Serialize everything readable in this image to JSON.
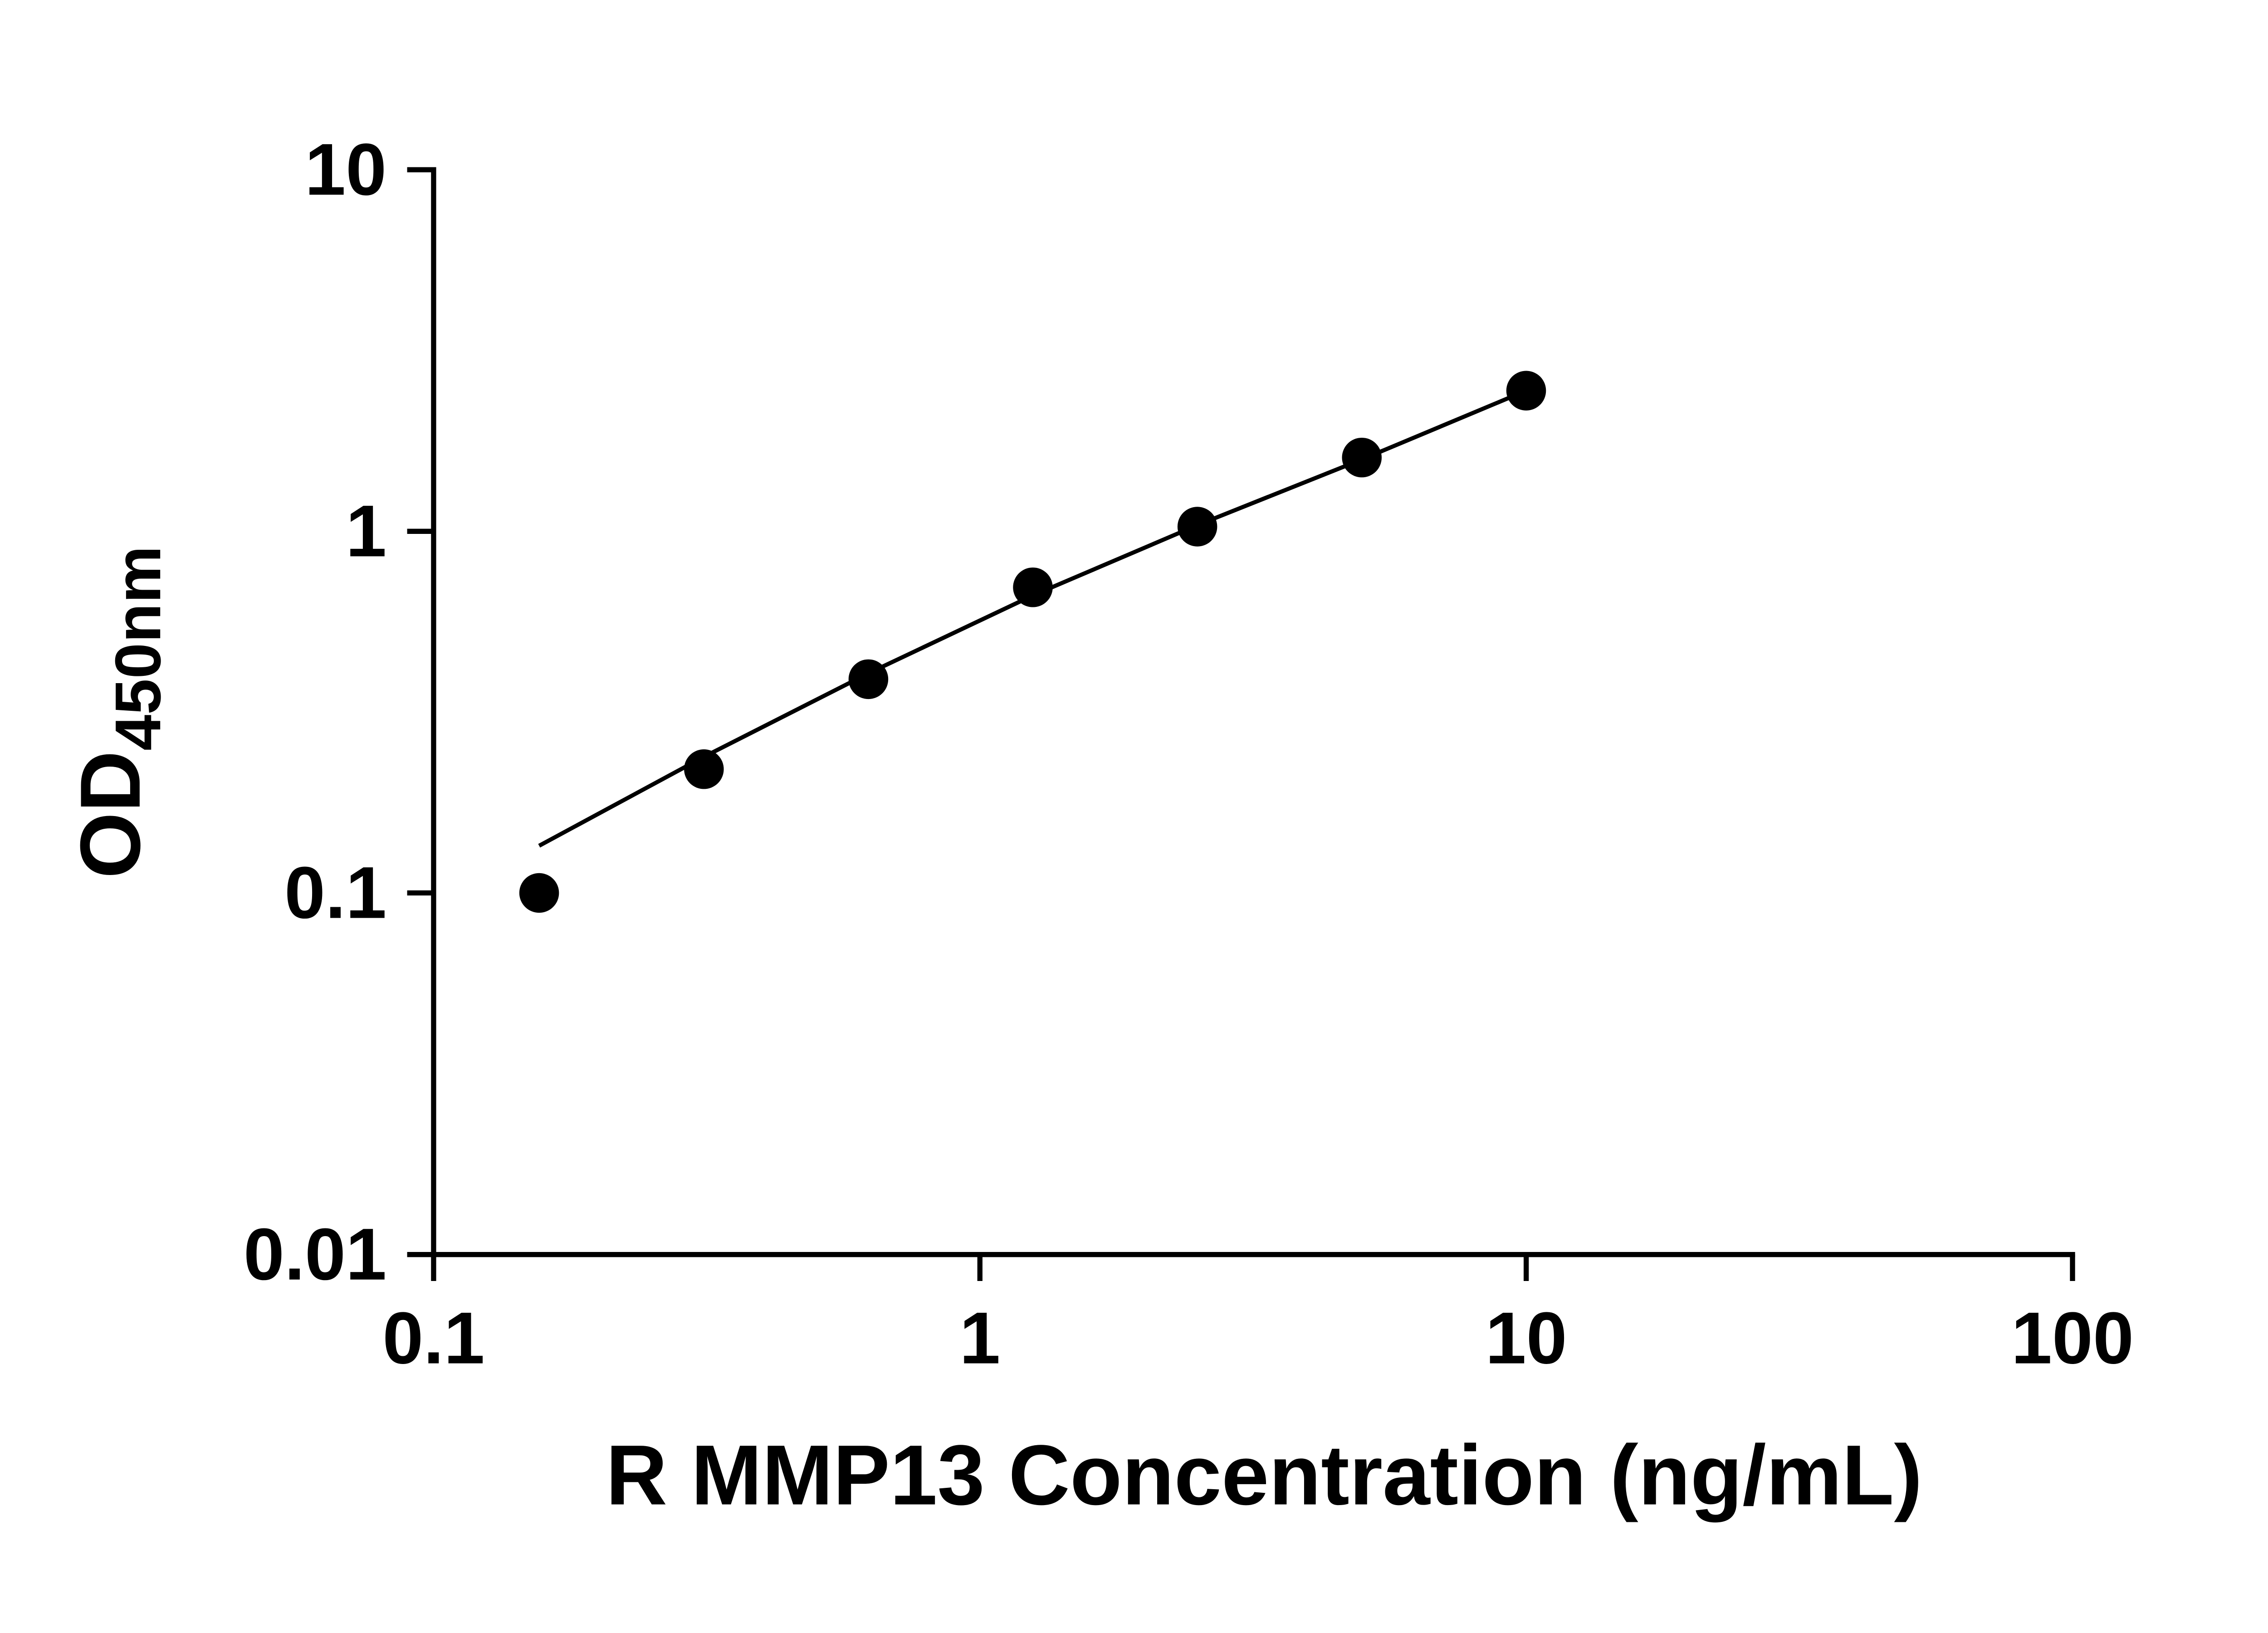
{
  "page": {
    "background": "#ffffff"
  },
  "chart_data": {
    "type": "scatter",
    "title": "",
    "xlabel": "R MMP13 Concentration (ng/mL)",
    "ylabel_main": "OD",
    "ylabel_sub": "450nm",
    "x_scale": "log",
    "y_scale": "log",
    "xlim": [
      0.1,
      100
    ],
    "ylim": [
      0.01,
      10
    ],
    "grid": false,
    "legend": null,
    "axis_color": "#000000",
    "point_color": "#000000",
    "line_color": "#000000",
    "x_ticks": [
      {
        "value": 0.1,
        "label": "0.1"
      },
      {
        "value": 1,
        "label": "1"
      },
      {
        "value": 10,
        "label": "10"
      },
      {
        "value": 100,
        "label": "100"
      }
    ],
    "y_ticks": [
      {
        "value": 0.01,
        "label": "0.01"
      },
      {
        "value": 0.1,
        "label": "0.1"
      },
      {
        "value": 1,
        "label": "1"
      },
      {
        "value": 10,
        "label": "10"
      }
    ],
    "points": [
      {
        "x": 0.156,
        "y": 0.1
      },
      {
        "x": 0.3125,
        "y": 0.22
      },
      {
        "x": 0.625,
        "y": 0.39
      },
      {
        "x": 1.25,
        "y": 0.7
      },
      {
        "x": 2.5,
        "y": 1.03
      },
      {
        "x": 5,
        "y": 1.6
      },
      {
        "x": 10,
        "y": 2.45
      }
    ],
    "trend_line": [
      {
        "x": 0.156,
        "y": 0.135
      },
      {
        "x": 0.3125,
        "y": 0.238
      },
      {
        "x": 0.625,
        "y": 0.405
      },
      {
        "x": 1.25,
        "y": 0.665
      },
      {
        "x": 2.5,
        "y": 1.04
      },
      {
        "x": 5,
        "y": 1.58
      },
      {
        "x": 10,
        "y": 2.45
      }
    ]
  }
}
